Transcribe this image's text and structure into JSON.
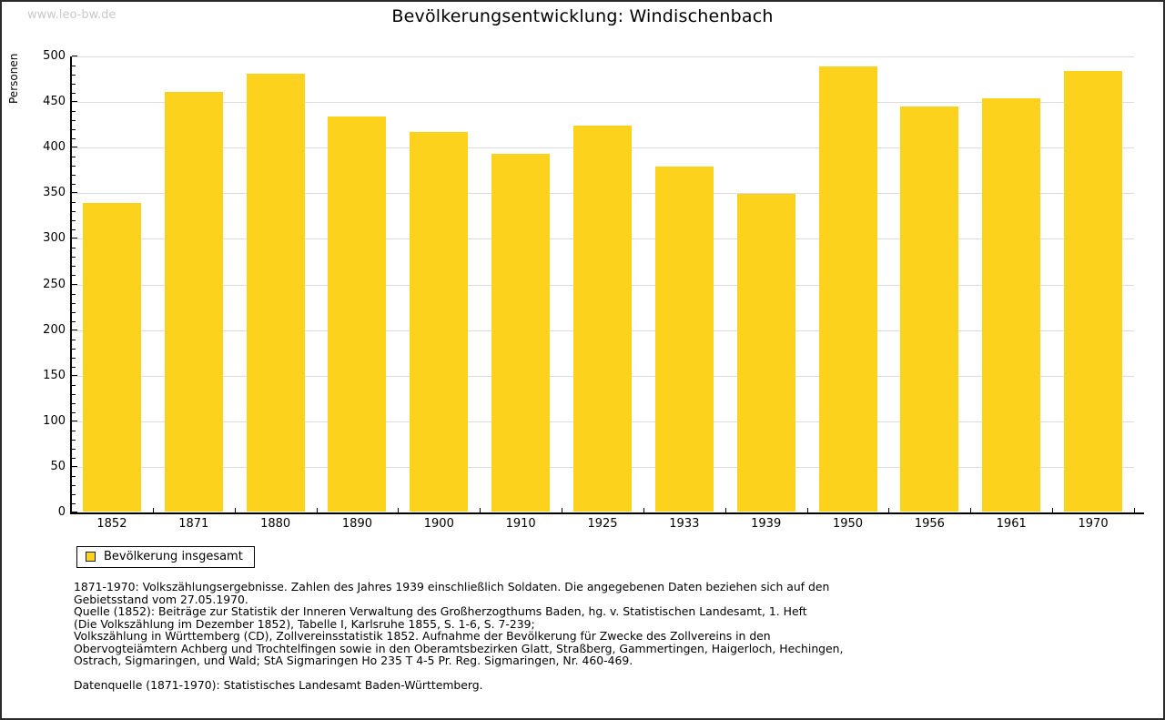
{
  "watermark": "www.leo-bw.de",
  "header": {
    "title": "Bevölkerungsentwicklung: Windischenbach"
  },
  "chart_data": {
    "type": "bar",
    "title": "Bevölkerungsentwicklung: Windischenbach",
    "xlabel": "",
    "ylabel": "Personen",
    "ylim": [
      0,
      500
    ],
    "ytick_step": 50,
    "yminor_step": 10,
    "grid": true,
    "legend_position": "bottom-left",
    "bar_color": "#fcd21c",
    "categories": [
      "1852",
      "1871",
      "1880",
      "1890",
      "1900",
      "1910",
      "1925",
      "1933",
      "1939",
      "1950",
      "1956",
      "1961",
      "1970"
    ],
    "series": [
      {
        "name": "Bevölkerung insgesamt",
        "values": [
          338,
          460,
          480,
          433,
          416,
          392,
          423,
          378,
          348,
          488,
          444,
          453,
          483
        ]
      }
    ]
  },
  "legend": {
    "label": "Bevölkerung insgesamt",
    "swatch_color": "#fcd21c"
  },
  "footer": {
    "lines": [
      "1871-1970: Volkszählungsergebnisse. Zahlen des Jahres 1939 einschließlich Soldaten. Die angegebenen Daten beziehen sich auf den",
      "Gebietsstand vom 27.05.1970.",
      "Quelle (1852): Beiträge zur Statistik der Inneren Verwaltung des Großherzogthums Baden, hg. v. Statistischen Landesamt, 1. Heft",
      "(Die Volkszählung im Dezember 1852), Tabelle I, Karlsruhe 1855, S. 1-6, S. 7-239;",
      "Volkszählung in Württemberg (CD), Zollvereinsstatistik 1852. Aufnahme der Bevölkerung für Zwecke des Zollvereins in den",
      "Obervogteiämtern Achberg und Trochtelfingen sowie in den Oberamtsbezirken Glatt, Straßberg, Gammertingen, Haigerloch, Hechingen,",
      "Ostrach, Sigmaringen, und Wald; StA Sigmaringen Ho 235 T 4-5 Pr. Reg. Sigmaringen, Nr. 460-469.",
      "",
      "Datenquelle (1871-1970): Statistisches Landesamt Baden-Württemberg."
    ]
  }
}
